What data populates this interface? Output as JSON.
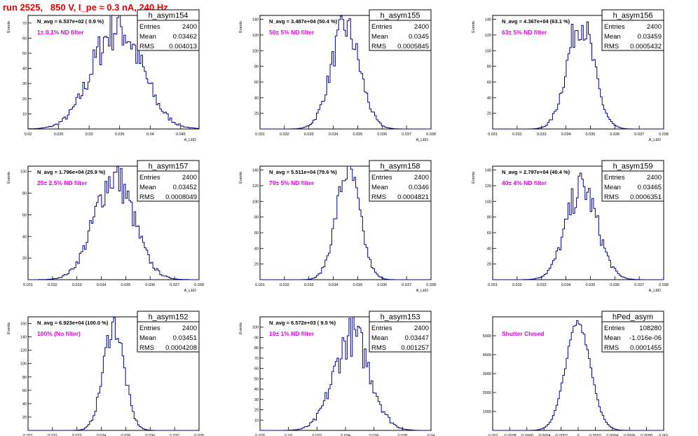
{
  "window_title": "run 2525,   850 V, I_pe ≈ 0.3 nA, 240 Hz",
  "colors": {
    "hist": "#00008b",
    "axis": "#000000",
    "note": "#e000e0",
    "title": "#e00000"
  },
  "chart_data": [
    {
      "type": "histogram",
      "name": "h_asym154",
      "ylabel": "Events",
      "xlabel": "A_LED",
      "xlim": [
        0.02,
        0.048
      ],
      "ylim": [
        0,
        75
      ],
      "xticks": [
        "0.02",
        "0.025",
        "0.03",
        "0.035",
        "0.04",
        "0.045"
      ],
      "xtick_vals": [
        0.02,
        0.025,
        0.03,
        0.035,
        0.04,
        0.045
      ],
      "yticks": [
        10,
        20,
        30,
        40,
        50,
        60,
        70
      ],
      "navg": "N_avg = 6.537e+02 ( 0.9 %)",
      "note": "1± 0.1% ND filter",
      "stats": {
        "Entries": "2400",
        "Mean": "0.03462",
        "RMS": "0.004013"
      },
      "mean": 0.03462,
      "rms": 0.004013,
      "peak": 68,
      "jitter": 0.35
    },
    {
      "type": "histogram",
      "name": "h_asym155",
      "ylabel": "Events",
      "xlabel": "A_LED",
      "xlim": [
        0.031,
        0.038
      ],
      "ylim": [
        0,
        145
      ],
      "xticks": [
        "0.031",
        "0.032",
        "0.033",
        "0.034",
        "0.035",
        "0.036",
        "0.037",
        "0.038"
      ],
      "xtick_vals": [
        0.031,
        0.032,
        0.033,
        0.034,
        0.035,
        0.036,
        0.037,
        0.038
      ],
      "yticks": [
        20,
        40,
        60,
        80,
        100,
        120,
        140
      ],
      "navg": "N_avg = 3.487e+04 (50.4 %)",
      "note": "50± 5% ND filter",
      "stats": {
        "Entries": "2400",
        "Mean": "0.0345",
        "RMS": "0.0005845"
      },
      "mean": 0.0345,
      "rms": 0.0005845,
      "peak": 130,
      "jitter": 0.25
    },
    {
      "type": "histogram",
      "name": "h_asym156",
      "ylabel": "Events",
      "xlabel": "A_LED",
      "xlim": [
        0.031,
        0.038
      ],
      "ylim": [
        0,
        145
      ],
      "xticks": [
        "0.031",
        "0.032",
        "0.033",
        "0.034",
        "0.035",
        "0.036",
        "0.037",
        "0.038"
      ],
      "xtick_vals": [
        0.031,
        0.032,
        0.033,
        0.034,
        0.035,
        0.036,
        0.037,
        0.038
      ],
      "yticks": [
        20,
        40,
        60,
        80,
        100,
        120,
        140
      ],
      "navg": "N_avg = 4.367e+04 (63.1 %)",
      "note": "63± 5% ND filter",
      "stats": {
        "Entries": "2400",
        "Mean": "0.03459",
        "RMS": "0.0005432"
      },
      "mean": 0.03459,
      "rms": 0.0005432,
      "peak": 138,
      "jitter": 0.25
    },
    {
      "type": "histogram",
      "name": "h_asym157",
      "ylabel": "Events",
      "xlabel": "A_LED",
      "xlim": [
        0.031,
        0.038
      ],
      "ylim": [
        0,
        105
      ],
      "xticks": [
        "0.031",
        "0.032",
        "0.033",
        "0.034",
        "0.035",
        "0.036",
        "0.037",
        "0.038"
      ],
      "xtick_vals": [
        0.031,
        0.032,
        0.033,
        0.034,
        0.035,
        0.036,
        0.037,
        0.038
      ],
      "yticks": [
        20,
        40,
        60,
        80,
        100
      ],
      "navg": "N_avg = 1.796e+04 (25.9 %)",
      "note": "25± 2.5% ND filter",
      "stats": {
        "Entries": "2400",
        "Mean": "0.03452",
        "RMS": "0.0008049"
      },
      "mean": 0.03452,
      "rms": 0.0008049,
      "peak": 95,
      "jitter": 0.28
    },
    {
      "type": "histogram",
      "name": "h_asym158",
      "ylabel": "Events",
      "xlabel": "A_LED",
      "xlim": [
        0.031,
        0.038
      ],
      "ylim": [
        0,
        145
      ],
      "xticks": [
        "0.031",
        "0.032",
        "0.033",
        "0.034",
        "0.035",
        "0.036",
        "0.037",
        "0.038"
      ],
      "xtick_vals": [
        0.031,
        0.032,
        0.033,
        0.034,
        0.035,
        0.036,
        0.037,
        0.038
      ],
      "yticks": [
        20,
        40,
        60,
        80,
        100,
        120,
        140
      ],
      "navg": "N_avg = 5.511e+04 (79.6 %)",
      "note": "79± 5% ND filter",
      "stats": {
        "Entries": "2400",
        "Mean": "0.0346",
        "RMS": "0.0004821"
      },
      "mean": 0.0346,
      "rms": 0.0004821,
      "peak": 140,
      "jitter": 0.22
    },
    {
      "type": "histogram",
      "name": "h_asym159",
      "ylabel": "Events",
      "xlabel": "A_LED",
      "xlim": [
        0.031,
        0.038
      ],
      "ylim": [
        0,
        145
      ],
      "xticks": [
        "0.031",
        "0.032",
        "0.033",
        "0.034",
        "0.035",
        "0.036",
        "0.037",
        "0.038"
      ],
      "xtick_vals": [
        0.031,
        0.032,
        0.033,
        0.034,
        0.035,
        0.036,
        0.037,
        0.038
      ],
      "yticks": [
        20,
        40,
        60,
        80,
        100,
        120,
        140
      ],
      "navg": "N_avg = 2.797e+04 (40.4 %)",
      "note": "40± 4% ND filter",
      "stats": {
        "Entries": "2400",
        "Mean": "0.03465",
        "RMS": "0.0006351"
      },
      "mean": 0.03465,
      "rms": 0.0006351,
      "peak": 118,
      "jitter": 0.28
    },
    {
      "type": "histogram",
      "name": "h_asym152",
      "ylabel": "Events",
      "xlabel": "A_LED",
      "xlim": [
        0.031,
        0.038
      ],
      "ylim": [
        0,
        170
      ],
      "xticks": [
        "0.031",
        "0.032",
        "0.033",
        "0.034",
        "0.035",
        "0.036",
        "0.037",
        "0.038"
      ],
      "xtick_vals": [
        0.031,
        0.032,
        0.033,
        0.034,
        0.035,
        0.036,
        0.037,
        0.038
      ],
      "yticks": [
        20,
        40,
        60,
        80,
        100,
        120,
        140,
        160
      ],
      "navg": "N_avg = 6.923e+04 (100.0 %)",
      "note": "100% (No filter)",
      "stats": {
        "Entries": "2400",
        "Mean": "0.03451",
        "RMS": "0.0004208"
      },
      "mean": 0.03451,
      "rms": 0.0004208,
      "peak": 158,
      "jitter": 0.2
    },
    {
      "type": "histogram",
      "name": "h_asym153",
      "ylabel": "Events",
      "xlabel": "A_LED",
      "xlim": [
        0.028,
        0.04
      ],
      "ylim": [
        0,
        110
      ],
      "xticks": [
        "0.028",
        "0.03",
        "0.032",
        "0.034",
        "0.036",
        "0.038",
        "0.04"
      ],
      "xtick_vals": [
        0.028,
        0.03,
        0.032,
        0.034,
        0.036,
        0.038,
        0.04
      ],
      "yticks": [
        10,
        20,
        30,
        40,
        50,
        60,
        70,
        80,
        90,
        100
      ],
      "navg": "N_avg = 6.572e+03 ( 9.5 %)",
      "note": "10± 1% ND filter",
      "stats": {
        "Entries": "2400",
        "Mean": "0.03447",
        "RMS": "0.001257"
      },
      "mean": 0.03447,
      "rms": 0.001257,
      "peak": 92,
      "jitter": 0.32
    },
    {
      "type": "histogram",
      "name": "hPed_asym",
      "ylabel": "",
      "xlabel": "",
      "xlim": [
        -0.001,
        0.001
      ],
      "ylim": [
        0,
        6000
      ],
      "xticks": [
        "-0.001",
        "-0.0008",
        "-0.0006",
        "-0.0004",
        "-0.0002",
        "0",
        "0.0002",
        "0.0004",
        "0.0006",
        "0.0008",
        "0.001"
      ],
      "xtick_vals": [
        -0.001,
        -0.0008,
        -0.0006,
        -0.0004,
        -0.0002,
        0,
        0.0002,
        0.0004,
        0.0006,
        0.0008,
        0.001
      ],
      "yticks": [
        1000,
        2000,
        3000,
        4000,
        5000
      ],
      "navg": "",
      "note": "Shutter Closed",
      "stats": {
        "Entries": "108280",
        "Mean": "-1.016e-06",
        "RMS": "0.0001455"
      },
      "mean": -1.016e-06,
      "rms": 0.0001455,
      "peak": 5700,
      "jitter": 0.05
    }
  ]
}
